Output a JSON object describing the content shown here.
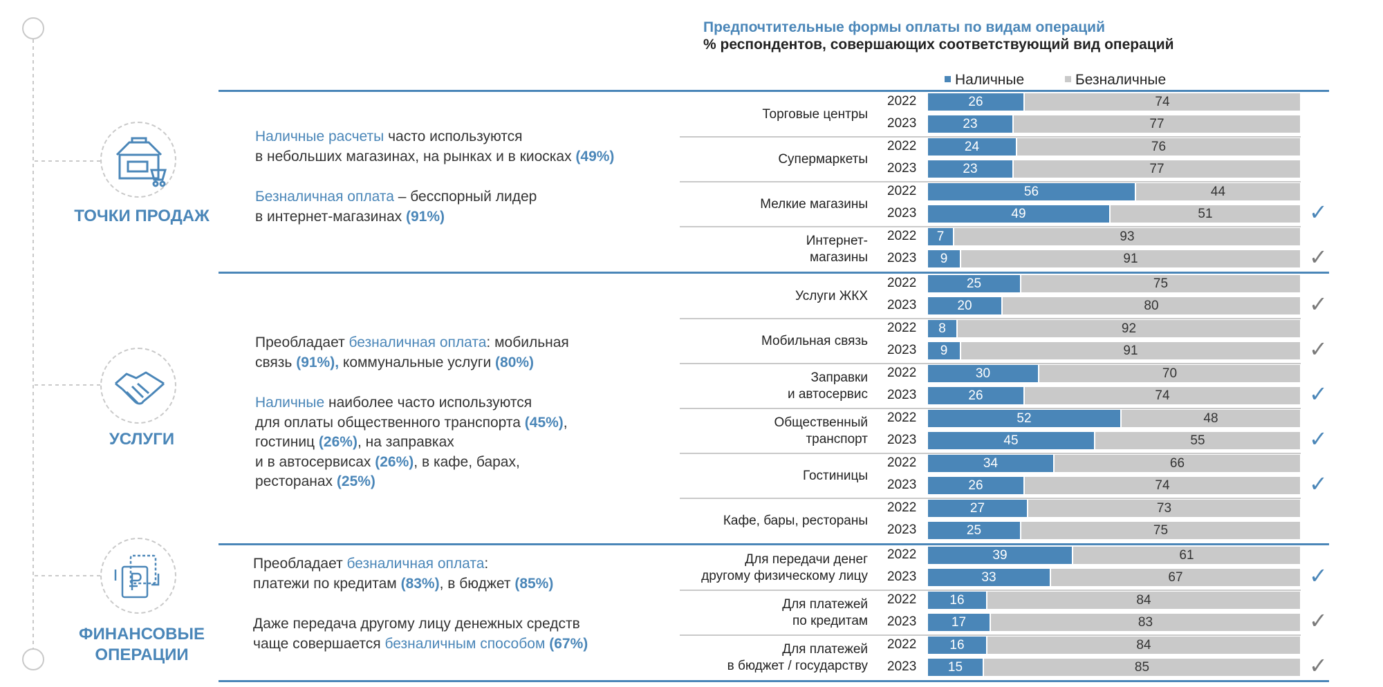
{
  "chart_data": {
    "type": "bar",
    "title": "Предпочтительные формы оплаты по видам операций",
    "subtitle": "% респондентов, совершающих соответствующий вид операций",
    "orientation": "horizontal-stacked-100",
    "xlim": [
      0,
      100
    ],
    "series": [
      {
        "name": "Наличные",
        "color": "#4a86b8"
      },
      {
        "name": "Безналичные",
        "color": "#c9c9c9"
      }
    ],
    "sections": [
      {
        "title": "ТОЧКИ ПРОДАЖ",
        "icon": "shop-cart-icon",
        "desc": [
          [
            {
              "t": "Наличные расчеты",
              "s": "hl"
            },
            {
              "t": " часто используются",
              "s": ""
            }
          ],
          [
            {
              "t": "в небольших магазинах, на рынках и в киосках ",
              "s": ""
            },
            {
              "t": "(49%)",
              "s": "hlb"
            }
          ],
          [],
          [
            {
              "t": "Безналичная оплата",
              "s": "hl"
            },
            {
              "t": " – бесспорный лидер",
              "s": ""
            }
          ],
          [
            {
              "t": "в интернет-магазинах ",
              "s": ""
            },
            {
              "t": "(91%)",
              "s": "hlb"
            }
          ]
        ],
        "categories": [
          {
            "label": [
              "Торговые центры"
            ],
            "rows": [
              {
                "year": "2022",
                "cash": 26,
                "card": 74
              },
              {
                "year": "2023",
                "cash": 23,
                "card": 77
              }
            ],
            "check": false
          },
          {
            "label": [
              "Супермаркеты"
            ],
            "rows": [
              {
                "year": "2022",
                "cash": 24,
                "card": 76
              },
              {
                "year": "2023",
                "cash": 23,
                "card": 77
              }
            ],
            "check": false
          },
          {
            "label": [
              "Мелкие магазины"
            ],
            "rows": [
              {
                "year": "2022",
                "cash": 56,
                "card": 44
              },
              {
                "year": "2023",
                "cash": 49,
                "card": 51
              }
            ],
            "check": true,
            "check_color": "#4a86b8"
          },
          {
            "label": [
              "Интернет-",
              "магазины"
            ],
            "rows": [
              {
                "year": "2022",
                "cash": 7,
                "card": 93
              },
              {
                "year": "2023",
                "cash": 9,
                "card": 91
              }
            ],
            "check": true,
            "check_color": "#7a7a7a"
          }
        ]
      },
      {
        "title": "УСЛУГИ",
        "icon": "handshake-icon",
        "desc": [
          [
            {
              "t": "Преобладает ",
              "s": ""
            },
            {
              "t": "безналичная оплата",
              "s": "hl"
            },
            {
              "t": ": мобильная",
              "s": ""
            }
          ],
          [
            {
              "t": "связь ",
              "s": ""
            },
            {
              "t": "(91%),",
              "s": "hlb"
            },
            {
              "t": " коммунальные услуги ",
              "s": ""
            },
            {
              "t": "(80%)",
              "s": "hlb"
            }
          ],
          [],
          [
            {
              "t": "Наличные",
              "s": "hl"
            },
            {
              "t": " наиболее часто используются",
              "s": ""
            }
          ],
          [
            {
              "t": "для оплаты общественного транспорта ",
              "s": ""
            },
            {
              "t": "(45%)",
              "s": "hlb"
            },
            {
              "t": ",",
              "s": ""
            }
          ],
          [
            {
              "t": "гостиниц ",
              "s": ""
            },
            {
              "t": "(26%)",
              "s": "hlb"
            },
            {
              "t": ", на заправках",
              "s": ""
            }
          ],
          [
            {
              "t": "и в автосервисах ",
              "s": ""
            },
            {
              "t": "(26%)",
              "s": "hlb"
            },
            {
              "t": ", в кафе, барах,",
              "s": ""
            }
          ],
          [
            {
              "t": "ресторанах ",
              "s": ""
            },
            {
              "t": "(25%)",
              "s": "hlb"
            }
          ]
        ],
        "categories": [
          {
            "label": [
              "Услуги ЖКХ"
            ],
            "rows": [
              {
                "year": "2022",
                "cash": 25,
                "card": 75
              },
              {
                "year": "2023",
                "cash": 20,
                "card": 80
              }
            ],
            "check": true,
            "check_color": "#7a7a7a"
          },
          {
            "label": [
              "Мобильная связь"
            ],
            "rows": [
              {
                "year": "2022",
                "cash": 8,
                "card": 92
              },
              {
                "year": "2023",
                "cash": 9,
                "card": 91
              }
            ],
            "check": true,
            "check_color": "#7a7a7a"
          },
          {
            "label": [
              "Заправки",
              "и автосервис"
            ],
            "rows": [
              {
                "year": "2022",
                "cash": 30,
                "card": 70
              },
              {
                "year": "2023",
                "cash": 26,
                "card": 74
              }
            ],
            "check": true,
            "check_color": "#4a86b8"
          },
          {
            "label": [
              "Общественный",
              "транспорт"
            ],
            "rows": [
              {
                "year": "2022",
                "cash": 52,
                "card": 48
              },
              {
                "year": "2023",
                "cash": 45,
                "card": 55
              }
            ],
            "check": true,
            "check_color": "#4a86b8"
          },
          {
            "label": [
              "Гостиницы"
            ],
            "rows": [
              {
                "year": "2022",
                "cash": 34,
                "card": 66
              },
              {
                "year": "2023",
                "cash": 26,
                "card": 74
              }
            ],
            "check": true,
            "check_color": "#4a86b8"
          },
          {
            "label": [
              "Кафе, бары, рестораны"
            ],
            "rows": [
              {
                "year": "2022",
                "cash": 27,
                "card": 73
              },
              {
                "year": "2023",
                "cash": 25,
                "card": 75
              }
            ],
            "check": false
          }
        ]
      },
      {
        "title": "ФИНАНСОВЫЕ ОПЕРАЦИИ",
        "icon": "money-transfer-icon",
        "desc": [
          [
            {
              "t": "Преобладает ",
              "s": ""
            },
            {
              "t": "безналичная оплата",
              "s": "hl"
            },
            {
              "t": ":",
              "s": ""
            }
          ],
          [
            {
              "t": "платежи по кредитам ",
              "s": ""
            },
            {
              "t": "(83%)",
              "s": "hlb"
            },
            {
              "t": ", в бюджет ",
              "s": ""
            },
            {
              "t": "(85%)",
              "s": "hlb"
            }
          ],
          [],
          [
            {
              "t": "Даже передача другому лицу денежных средств",
              "s": ""
            }
          ],
          [
            {
              "t": "чаще совершается ",
              "s": ""
            },
            {
              "t": "безналичным способом",
              "s": "hl"
            },
            {
              "t": " ",
              "s": ""
            },
            {
              "t": "(67%)",
              "s": "hlb"
            }
          ]
        ],
        "categories": [
          {
            "label": [
              "Для передачи денег",
              "другому физическому лицу"
            ],
            "rows": [
              {
                "year": "2022",
                "cash": 39,
                "card": 61
              },
              {
                "year": "2023",
                "cash": 33,
                "card": 67
              }
            ],
            "check": true,
            "check_color": "#4a86b8"
          },
          {
            "label": [
              "Для платежей",
              "по кредитам"
            ],
            "rows": [
              {
                "year": "2022",
                "cash": 16,
                "card": 84
              },
              {
                "year": "2023",
                "cash": 17,
                "card": 83
              }
            ],
            "check": true,
            "check_color": "#7a7a7a"
          },
          {
            "label": [
              "Для платежей",
              "в бюджет / государству"
            ],
            "rows": [
              {
                "year": "2022",
                "cash": 16,
                "card": 84
              },
              {
                "year": "2023",
                "cash": 15,
                "card": 85
              }
            ],
            "check": true,
            "check_color": "#7a7a7a"
          }
        ]
      }
    ]
  },
  "check_glyph": "✓"
}
